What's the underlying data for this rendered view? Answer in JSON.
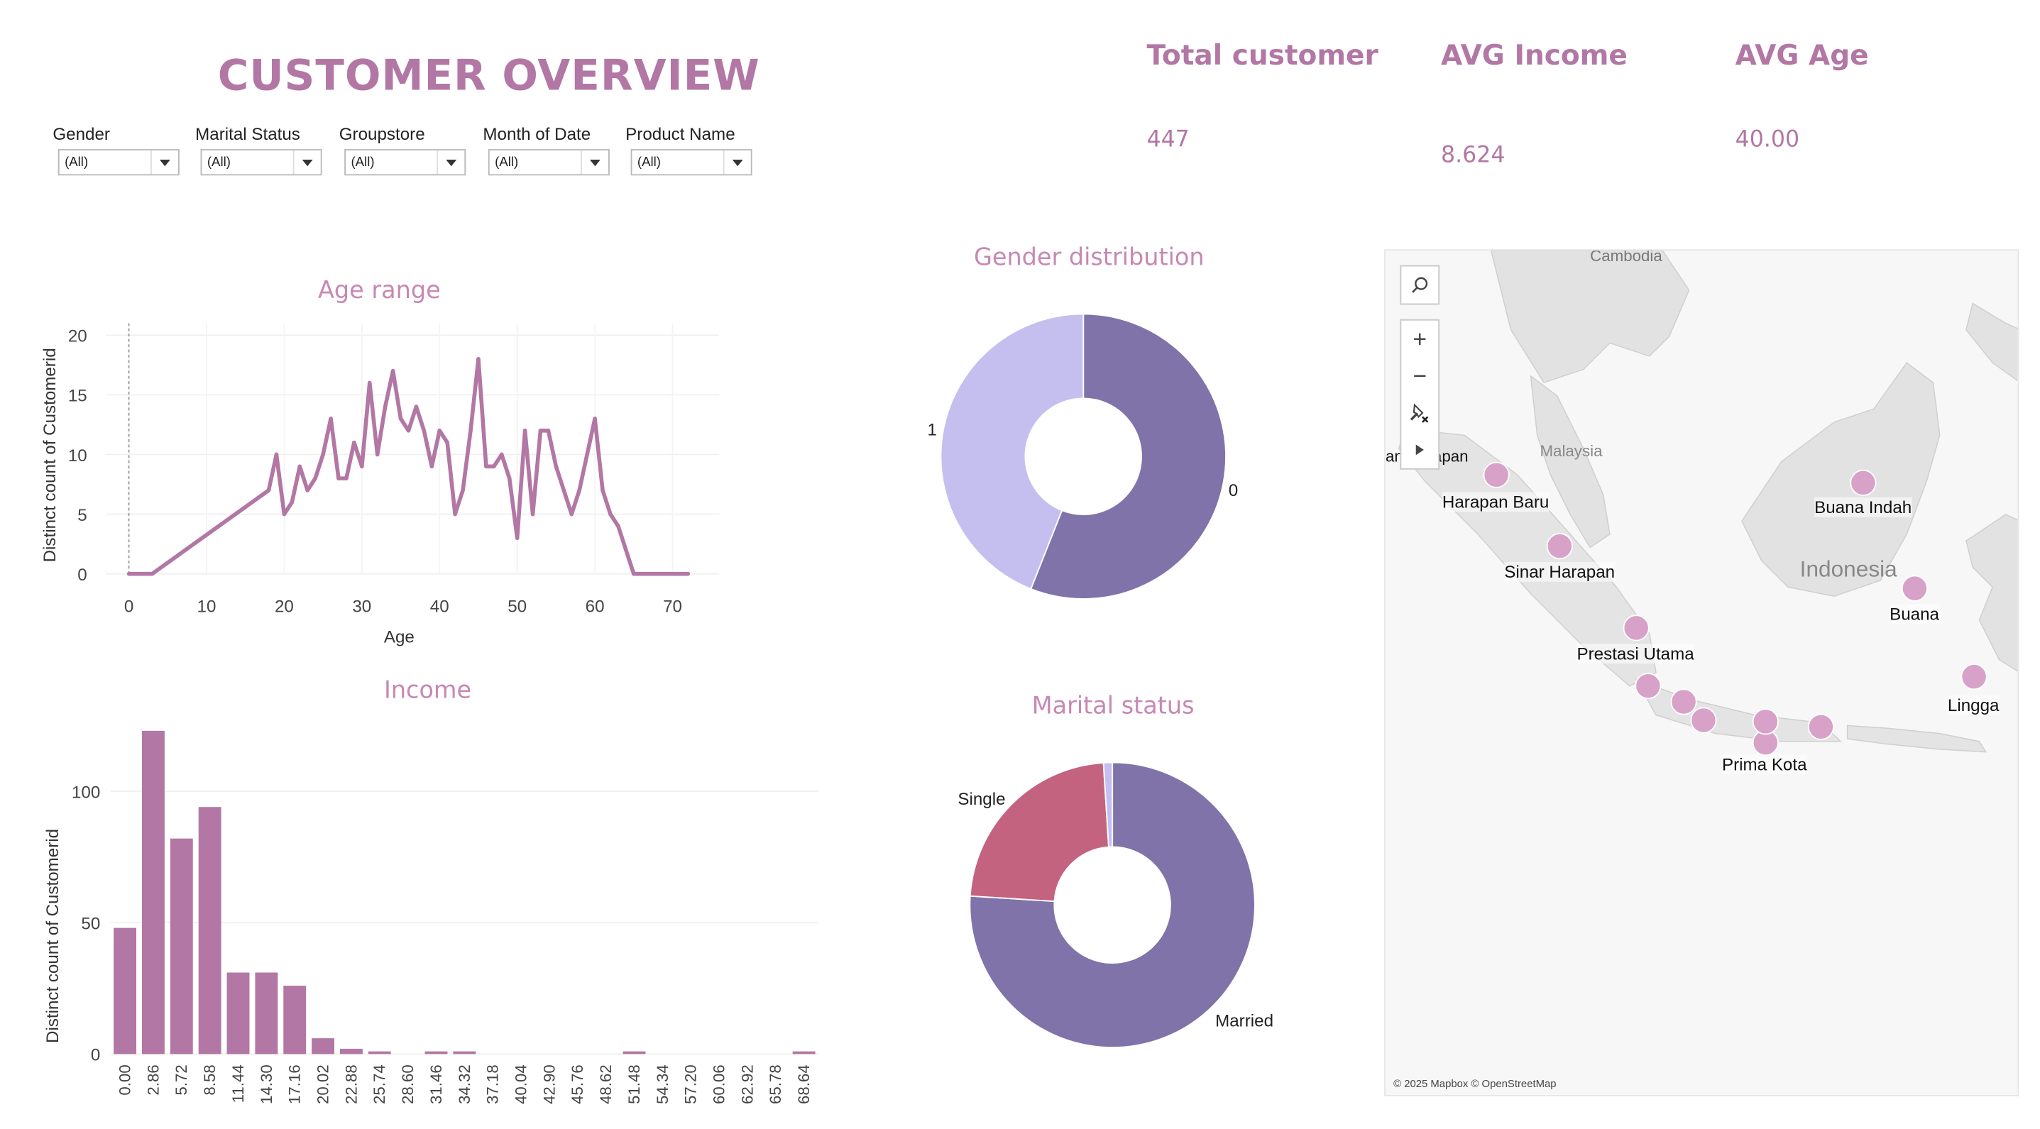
{
  "header": {
    "title": "CUSTOMER OVERVIEW"
  },
  "kpis": [
    {
      "label": "Total customer",
      "value": "447"
    },
    {
      "label": "AVG Income",
      "value": "8.624"
    },
    {
      "label": "AVG Age",
      "value": "40.00"
    }
  ],
  "filters": [
    {
      "label": "Gender",
      "value": "(All)"
    },
    {
      "label": "Marital Status",
      "value": "(All)"
    },
    {
      "label": "Groupstore",
      "value": "(All)"
    },
    {
      "label": "Month of Date",
      "value": "(All)"
    },
    {
      "label": "Product Name",
      "value": "(All)"
    }
  ],
  "colors": {
    "accent": "#b277a4",
    "line": "#b277a4",
    "bar": "#b277a4",
    "donut_dark": "#8073a9",
    "donut_light": "#c5bfef",
    "single": "#c4637f",
    "map_point": "#d7a1c8"
  },
  "chart_data": [
    {
      "id": "age_range",
      "type": "line",
      "title": "Age range",
      "xlabel": "Age",
      "ylabel": "Distinct count of Customerid",
      "xlim": [
        -3,
        76
      ],
      "ylim": [
        0,
        21
      ],
      "xticks": [
        0,
        10,
        20,
        30,
        40,
        50,
        60,
        70
      ],
      "yticks": [
        0,
        5,
        10,
        15,
        20
      ],
      "x": [
        0,
        3,
        18,
        19,
        20,
        21,
        22,
        23,
        24,
        25,
        26,
        27,
        28,
        29,
        30,
        31,
        32,
        33,
        34,
        35,
        36,
        37,
        38,
        39,
        40,
        41,
        42,
        43,
        44,
        45,
        46,
        47,
        48,
        49,
        50,
        51,
        52,
        53,
        54,
        55,
        56,
        57,
        58,
        59,
        60,
        61,
        62,
        63,
        65,
        72
      ],
      "y": [
        0,
        0,
        7,
        10,
        5,
        6,
        9,
        7,
        8,
        10,
        13,
        8,
        8,
        11,
        9,
        16,
        10,
        14,
        17,
        13,
        12,
        14,
        12,
        9,
        12,
        11,
        5,
        7,
        12,
        18,
        9,
        9,
        10,
        8,
        3,
        12,
        5,
        12,
        12,
        9,
        7,
        5,
        7,
        10,
        13,
        7,
        5,
        4,
        0,
        0
      ]
    },
    {
      "id": "income",
      "type": "bar",
      "title": "Income",
      "xlabel": "",
      "ylabel": "Distinct count of Customerid",
      "ylim": [
        0,
        125
      ],
      "yticks": [
        0,
        50,
        100
      ],
      "categories": [
        "0.00",
        "2.86",
        "5.72",
        "8.58",
        "11.44",
        "14.30",
        "17.16",
        "20.02",
        "22.88",
        "25.74",
        "28.60",
        "31.46",
        "34.32",
        "37.18",
        "40.04",
        "42.90",
        "45.76",
        "48.62",
        "51.48",
        "54.34",
        "57.20",
        "60.06",
        "62.92",
        "65.78",
        "68.64"
      ],
      "values": [
        48,
        123,
        82,
        94,
        31,
        31,
        26,
        6,
        2,
        1,
        0,
        1,
        1,
        0,
        0,
        0,
        0,
        0,
        1,
        0,
        0,
        0,
        0,
        0,
        1
      ]
    },
    {
      "id": "gender",
      "type": "pie",
      "title": "Gender distribution",
      "labels": [
        "0",
        "1"
      ],
      "values": [
        56,
        44
      ]
    },
    {
      "id": "marital",
      "type": "pie",
      "title": "Marital status",
      "labels": [
        "Married",
        "Single",
        ""
      ],
      "values": [
        76,
        23,
        1
      ]
    }
  ],
  "map": {
    "attribution": "© 2025 Mapbox © OpenStreetMap",
    "background_labels": [
      {
        "text": "Cambodia"
      },
      {
        "text": "Malaysia"
      },
      {
        "text": "Indonesia"
      }
    ],
    "cut_label": "an Harapan",
    "points": [
      {
        "name": "Harapan Baru"
      },
      {
        "name": "Sinar Harapan"
      },
      {
        "name": "Buana Indah"
      },
      {
        "name": "Buana"
      },
      {
        "name": "Prestasi Utama"
      },
      {
        "name": "Lingga"
      },
      {
        "name": "Prima Kota"
      },
      {
        "name": ""
      },
      {
        "name": ""
      },
      {
        "name": ""
      },
      {
        "name": ""
      },
      {
        "name": ""
      }
    ]
  }
}
